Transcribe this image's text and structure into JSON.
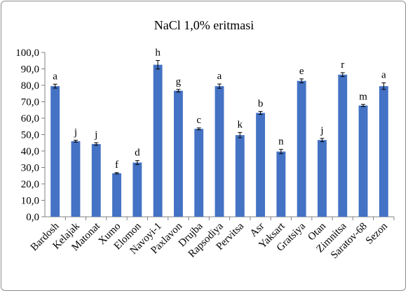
{
  "chart_data": {
    "type": "bar",
    "title": "NaCl 1,0% eritmasi",
    "xlabel": "",
    "ylabel": "",
    "ylim": [
      0,
      100
    ],
    "ytick_step": 10,
    "ytick_labels": [
      "0,0",
      "10,0",
      "20,0",
      "30,0",
      "40,0",
      "50,0",
      "60,0",
      "70,0",
      "80,0",
      "90,0",
      "100,0"
    ],
    "grid": false,
    "legend": "none",
    "bar_color": "#4472c4",
    "categories": [
      "Bardosh",
      "Kelajak",
      "Matonat",
      "Xumo",
      "Elomon",
      "Navoyi-1",
      "Paxlavon",
      "Drujba",
      "Rapsodiya",
      "Pervitsa",
      "Asr",
      "Yaksart",
      "Gratsiya",
      "Otan",
      "Zimnitsa",
      "Saratov-68",
      "Sezon"
    ],
    "values": [
      79.5,
      46.0,
      44.3,
      26.5,
      33.0,
      92.5,
      76.7,
      53.5,
      79.5,
      49.7,
      63.2,
      39.7,
      82.7,
      46.7,
      86.5,
      67.7,
      79.5
    ],
    "errors": [
      1.2,
      0.6,
      0.8,
      0.4,
      1.2,
      2.6,
      0.8,
      0.6,
      1.3,
      1.6,
      0.9,
      1.3,
      1.2,
      1.0,
      1.2,
      0.7,
      2.0
    ],
    "annotations": [
      "a",
      "j",
      "j",
      "f",
      "d",
      "h",
      "g",
      "c",
      "a",
      "k",
      "b",
      "n",
      "e",
      "j",
      "r",
      "m",
      "a"
    ]
  }
}
